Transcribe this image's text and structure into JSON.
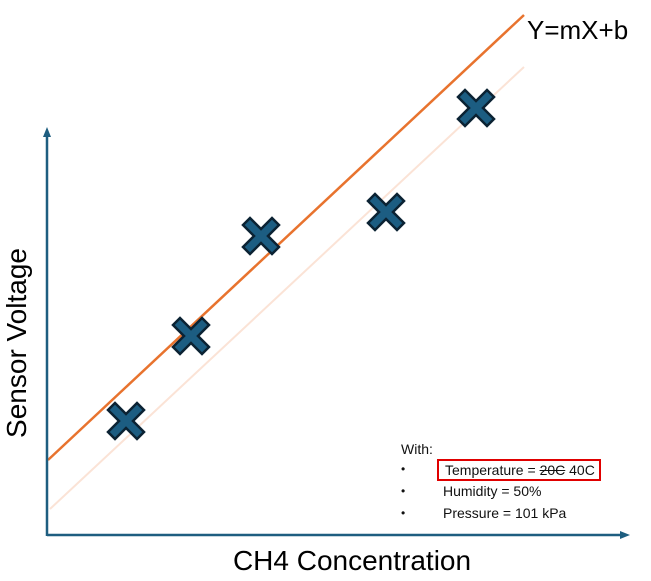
{
  "diagram": {
    "equation": "Y=mX+b",
    "y_axis_label": "Sensor Voltage",
    "x_axis_label": "CH4 Concentration",
    "colors": {
      "axis": "#1e5e80",
      "fit_line": "#e8732e",
      "shifted_line": "#fbe3d6",
      "marker_fill": "#1c5d82",
      "marker_stroke": "#0b2233",
      "highlight_border": "#e00000"
    },
    "marker_icon": "x-cross-marker",
    "marker_count": 5,
    "conditions": {
      "heading": "With:",
      "bullet": "•",
      "temperature_label": "Temperature = ",
      "temperature_old": "20C",
      "temperature_new": " 40C",
      "humidity": "Humidity = 50%",
      "pressure": "Pressure = 101 kPa"
    }
  }
}
